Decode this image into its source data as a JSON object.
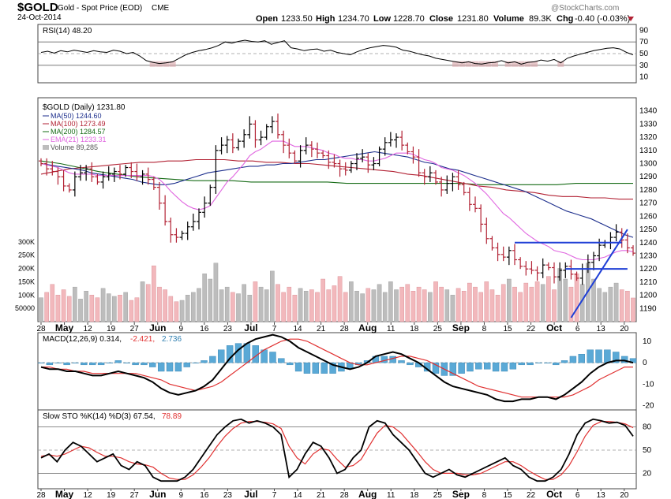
{
  "header": {
    "symbol": "$GOLD",
    "name": "Gold - Spot Price (EOD)",
    "exchange": "CME",
    "date": "24-Oct-2014",
    "watermark": "@StockCharts.com",
    "stats": {
      "open_label": "Open",
      "open": "1233.50",
      "high_label": "High",
      "high": "1234.70",
      "low_label": "Low",
      "low": "1228.70",
      "close_label": "Close",
      "close": "1231.80",
      "volume_label": "Volume",
      "volume": "89.3K",
      "chg_label": "Chg",
      "chg": "-0.40 (-0.03%)"
    }
  },
  "colors": {
    "up": "#000000",
    "down": "#b22234",
    "ma50": "#1c2e8c",
    "ma100": "#b22234",
    "ma200": "#166b16",
    "ema21": "#e066e0",
    "vol_down": "#f2b8bc",
    "vol_up": "#bdbdbd",
    "trend": "#1f3fd6",
    "macd_hist": "#5aa9d6",
    "signal": "#e03030"
  },
  "chart_data": [
    {
      "type": "line",
      "panel": "rsi",
      "legend": "RSI(14) 48.20",
      "ylim": [
        0,
        100
      ],
      "yticks": [
        90,
        70,
        50,
        30,
        10
      ],
      "levels": [
        70,
        30
      ],
      "values": [
        52,
        54,
        51,
        55,
        53,
        56,
        54,
        52,
        55,
        53,
        52,
        56,
        54,
        50,
        52,
        46,
        38,
        35,
        33,
        34,
        36,
        42,
        48,
        52,
        55,
        57,
        60,
        64,
        70,
        68,
        71,
        73,
        71,
        70,
        72,
        66,
        69,
        72,
        60,
        58,
        55,
        57,
        58,
        54,
        56,
        52,
        50,
        48,
        53,
        57,
        60,
        62,
        64,
        63,
        61,
        56,
        54,
        51,
        48,
        46,
        42,
        40,
        38,
        36,
        34,
        36,
        33,
        32,
        34,
        35,
        38,
        34,
        36,
        32,
        35,
        36,
        39,
        37,
        40,
        34,
        42,
        46,
        49,
        52,
        55,
        57,
        59,
        60,
        58,
        52,
        48
      ]
    },
    {
      "type": "ohlc",
      "panel": "price",
      "legend": [
        "$GOLD (Daily) 1231.80",
        "MA(50) 1244.60",
        "MA(100) 1273.49",
        "MA(200) 1284.57",
        "EMA(21) 1233.31",
        "Volume 89,285"
      ],
      "ylim": [
        1180,
        1350
      ],
      "yticks": [
        1190,
        1200,
        1210,
        1220,
        1230,
        1240,
        1250,
        1260,
        1270,
        1280,
        1290,
        1300,
        1310,
        1320,
        1330,
        1340
      ],
      "close": [
        1300,
        1296,
        1294,
        1290,
        1283,
        1280,
        1290,
        1293,
        1296,
        1290,
        1286,
        1290,
        1292,
        1294,
        1292,
        1297,
        1294,
        1290,
        1292,
        1288,
        1282,
        1270,
        1256,
        1246,
        1244,
        1247,
        1252,
        1256,
        1263,
        1270,
        1282,
        1310,
        1314,
        1318,
        1312,
        1317,
        1322,
        1330,
        1318,
        1320,
        1328,
        1332,
        1322,
        1314,
        1308,
        1302,
        1310,
        1314,
        1311,
        1308,
        1306,
        1301,
        1300,
        1296,
        1295,
        1300,
        1304,
        1305,
        1299,
        1300,
        1311,
        1316,
        1318,
        1320,
        1314,
        1309,
        1305,
        1293,
        1290,
        1293,
        1286,
        1280,
        1285,
        1290,
        1284,
        1278,
        1269,
        1266,
        1254,
        1243,
        1236,
        1231,
        1229,
        1234,
        1227,
        1222,
        1220,
        1219,
        1217,
        1223,
        1221,
        1214,
        1219,
        1222,
        1216,
        1213,
        1220,
        1225,
        1230,
        1238,
        1240,
        1244,
        1248,
        1242,
        1236,
        1232
      ],
      "ma50": [
        1300,
        1299,
        1298,
        1297,
        1296,
        1295,
        1293,
        1292,
        1291,
        1290,
        1289,
        1288,
        1286,
        1285,
        1284,
        1284,
        1285,
        1287,
        1289,
        1291,
        1293,
        1294,
        1295,
        1296,
        1297,
        1298,
        1298,
        1299,
        1299,
        1300,
        1300,
        1301,
        1302,
        1303,
        1303,
        1304,
        1305,
        1306,
        1307,
        1308,
        1309,
        1308,
        1307,
        1306,
        1305,
        1303,
        1301,
        1300,
        1298,
        1296,
        1295,
        1293,
        1291,
        1289,
        1287,
        1285,
        1283,
        1281,
        1279,
        1276,
        1273,
        1270,
        1267,
        1264,
        1262,
        1260,
        1258,
        1255,
        1252,
        1249,
        1246,
        1244
      ],
      "ma100": [
        1292,
        1294,
        1296,
        1297,
        1298,
        1299,
        1300,
        1301,
        1301,
        1302,
        1302,
        1303,
        1303,
        1303,
        1302,
        1302,
        1301,
        1301,
        1300,
        1300,
        1299,
        1298,
        1297,
        1296,
        1295,
        1294,
        1292,
        1291,
        1289,
        1287,
        1285,
        1283,
        1282,
        1280,
        1279,
        1278,
        1276,
        1275,
        1275,
        1274,
        1274,
        1273,
        1273
      ],
      "ma200": [
        1302,
        1300,
        1297,
        1294,
        1292,
        1290,
        1289,
        1288,
        1287,
        1287,
        1287,
        1286,
        1286,
        1286,
        1286,
        1286,
        1285,
        1285,
        1285,
        1285,
        1285,
        1285,
        1285,
        1284,
        1284,
        1284,
        1284,
        1284,
        1285,
        1285,
        1285,
        1285
      ],
      "ema21": [
        1300,
        1299,
        1298,
        1297,
        1295,
        1293,
        1292,
        1292,
        1292,
        1292,
        1291,
        1291,
        1291,
        1291,
        1291,
        1291,
        1291,
        1291,
        1291,
        1291,
        1290,
        1288,
        1284,
        1279,
        1275,
        1271,
        1268,
        1266,
        1265,
        1266,
        1268,
        1274,
        1280,
        1286,
        1290,
        1295,
        1300,
        1306,
        1309,
        1311,
        1314,
        1317,
        1317,
        1317,
        1315,
        1313,
        1313,
        1313,
        1312,
        1311,
        1310,
        1308,
        1307,
        1305,
        1304,
        1304,
        1303,
        1303,
        1302,
        1302,
        1303,
        1304,
        1306,
        1308,
        1308,
        1308,
        1307,
        1305,
        1303,
        1302,
        1300,
        1297,
        1296,
        1295,
        1293,
        1291,
        1288,
        1285,
        1281,
        1277,
        1272,
        1267,
        1262,
        1259,
        1255,
        1251,
        1247,
        1244,
        1241,
        1239,
        1237,
        1234,
        1233,
        1232,
        1230,
        1228,
        1227,
        1227,
        1227,
        1228,
        1229,
        1231,
        1233,
        1234,
        1234,
        1233
      ],
      "volume_axis": [
        "300K",
        "250K",
        "200K",
        "150K",
        "100K",
        "50000"
      ],
      "volume": [
        90,
        110,
        140,
        100,
        120,
        95,
        130,
        85,
        115,
        100,
        90,
        125,
        105,
        95,
        100,
        110,
        80,
        90,
        150,
        140,
        210,
        130,
        120,
        95,
        75,
        80,
        100,
        110,
        125,
        180,
        160,
        220,
        120,
        130,
        110,
        105,
        140,
        100,
        150,
        130,
        120,
        190,
        140,
        110,
        130,
        100,
        125,
        115,
        120,
        110,
        160,
        120,
        135,
        170,
        110,
        150,
        115,
        105,
        125,
        120,
        140,
        110,
        150,
        120,
        130,
        140,
        115,
        130,
        120,
        110,
        150,
        130,
        120,
        100,
        125,
        115,
        145,
        130,
        110,
        150,
        120,
        100,
        140,
        160,
        130,
        110,
        145,
        130,
        150,
        140,
        170,
        120,
        200,
        160,
        130,
        180,
        140,
        220,
        160,
        125,
        110,
        130,
        145,
        120,
        115,
        89
      ]
    },
    {
      "type": "line",
      "panel": "macd",
      "legend": [
        "MACD(12,26,9) 0.314,",
        "-2.421,",
        "2.736"
      ],
      "ylim": [
        -22,
        14
      ],
      "yticks": [
        10,
        0,
        -10,
        -20
      ],
      "macd": [
        -2,
        -3,
        -3,
        -4,
        -4,
        -5,
        -6,
        -6,
        -5,
        -4,
        -5,
        -6,
        -7,
        -9,
        -12,
        -14,
        -15,
        -14,
        -13,
        -11,
        -8,
        -3,
        2,
        6,
        9,
        11,
        12,
        13,
        12,
        10,
        7,
        5,
        3,
        1,
        -1,
        -2,
        -3,
        -2,
        0,
        3,
        4,
        5,
        4,
        2,
        0,
        -3,
        -6,
        -9,
        -11,
        -12,
        -13,
        -14,
        -15,
        -17,
        -18,
        -18,
        -17,
        -17,
        -16,
        -16,
        -17,
        -15,
        -12,
        -9,
        -5,
        -2,
        0,
        1,
        1,
        0
      ],
      "signal": [
        -2,
        -2,
        -3,
        -3,
        -4,
        -4,
        -5,
        -5,
        -5,
        -5,
        -5,
        -5,
        -6,
        -7,
        -8,
        -10,
        -11,
        -12,
        -13,
        -12,
        -11,
        -9,
        -6,
        -3,
        0,
        3,
        6,
        8,
        10,
        11,
        11,
        10,
        8,
        6,
        4,
        2,
        0,
        -1,
        -1,
        0,
        1,
        2,
        3,
        3,
        2,
        1,
        -1,
        -3,
        -5,
        -7,
        -9,
        -11,
        -12,
        -13,
        -14,
        -15,
        -16,
        -16,
        -16,
        -16,
        -16,
        -16,
        -15,
        -13,
        -11,
        -8,
        -6,
        -4,
        -2,
        -2
      ],
      "histogram": [
        0,
        -1,
        0,
        -1,
        0,
        -1,
        -1,
        -1,
        0,
        1,
        0,
        -1,
        -1,
        -2,
        -4,
        -4,
        -4,
        -2,
        0,
        1,
        3,
        6,
        8,
        9,
        9,
        8,
        6,
        5,
        2,
        -1,
        -4,
        -5,
        -5,
        -5,
        -5,
        -4,
        -3,
        -1,
        1,
        3,
        3,
        3,
        1,
        -1,
        -2,
        -4,
        -5,
        -6,
        -6,
        -5,
        -4,
        -3,
        -3,
        -4,
        -4,
        -3,
        -1,
        -1,
        0,
        0,
        -1,
        1,
        3,
        4,
        6,
        6,
        6,
        5,
        3,
        2
      ]
    },
    {
      "type": "line",
      "panel": "sto",
      "legend": [
        "Slow STO %K(14) %D(3) 67.54,",
        "78.89"
      ],
      "ylim": [
        0,
        100
      ],
      "yticks": [
        80,
        50,
        20
      ],
      "levels": [
        80,
        50,
        20
      ],
      "k": [
        40,
        45,
        35,
        50,
        60,
        55,
        45,
        35,
        40,
        45,
        30,
        25,
        35,
        30,
        15,
        10,
        10,
        10,
        15,
        25,
        40,
        55,
        70,
        80,
        88,
        90,
        85,
        88,
        85,
        80,
        70,
        15,
        25,
        45,
        60,
        55,
        40,
        20,
        25,
        40,
        50,
        80,
        88,
        85,
        70,
        60,
        50,
        35,
        20,
        15,
        20,
        25,
        18,
        15,
        20,
        25,
        30,
        35,
        40,
        30,
        25,
        15,
        10,
        10,
        15,
        25,
        45,
        70,
        85,
        90,
        88,
        85,
        86,
        82,
        68
      ],
      "d": [
        42,
        44,
        42,
        45,
        50,
        55,
        53,
        47,
        42,
        42,
        40,
        35,
        32,
        31,
        28,
        20,
        14,
        12,
        12,
        18,
        28,
        40,
        55,
        68,
        78,
        85,
        87,
        87,
        86,
        84,
        78,
        55,
        40,
        32,
        45,
        52,
        50,
        38,
        28,
        30,
        38,
        55,
        72,
        82,
        80,
        72,
        60,
        48,
        35,
        25,
        20,
        20,
        20,
        18,
        18,
        20,
        25,
        30,
        35,
        35,
        30,
        23,
        17,
        12,
        12,
        18,
        30,
        48,
        68,
        82,
        87,
        87,
        86,
        84,
        79
      ]
    }
  ],
  "x_axis": {
    "labels": [
      "28",
      "May",
      "12",
      "19",
      "27",
      "Jun",
      "9",
      "16",
      "23",
      "Jul",
      "7",
      "14",
      "21",
      "28",
      "Aug",
      "11",
      "18",
      "25",
      "Sep",
      "8",
      "15",
      "22",
      "Oct",
      "6",
      "13",
      "20"
    ],
    "bold": [
      "May",
      "Jun",
      "Jul",
      "Aug",
      "Sep",
      "Oct"
    ]
  },
  "annotations": {
    "resistance_upper": 1240,
    "resistance_lower": 1220,
    "trendline": [
      1183,
      1250
    ]
  }
}
